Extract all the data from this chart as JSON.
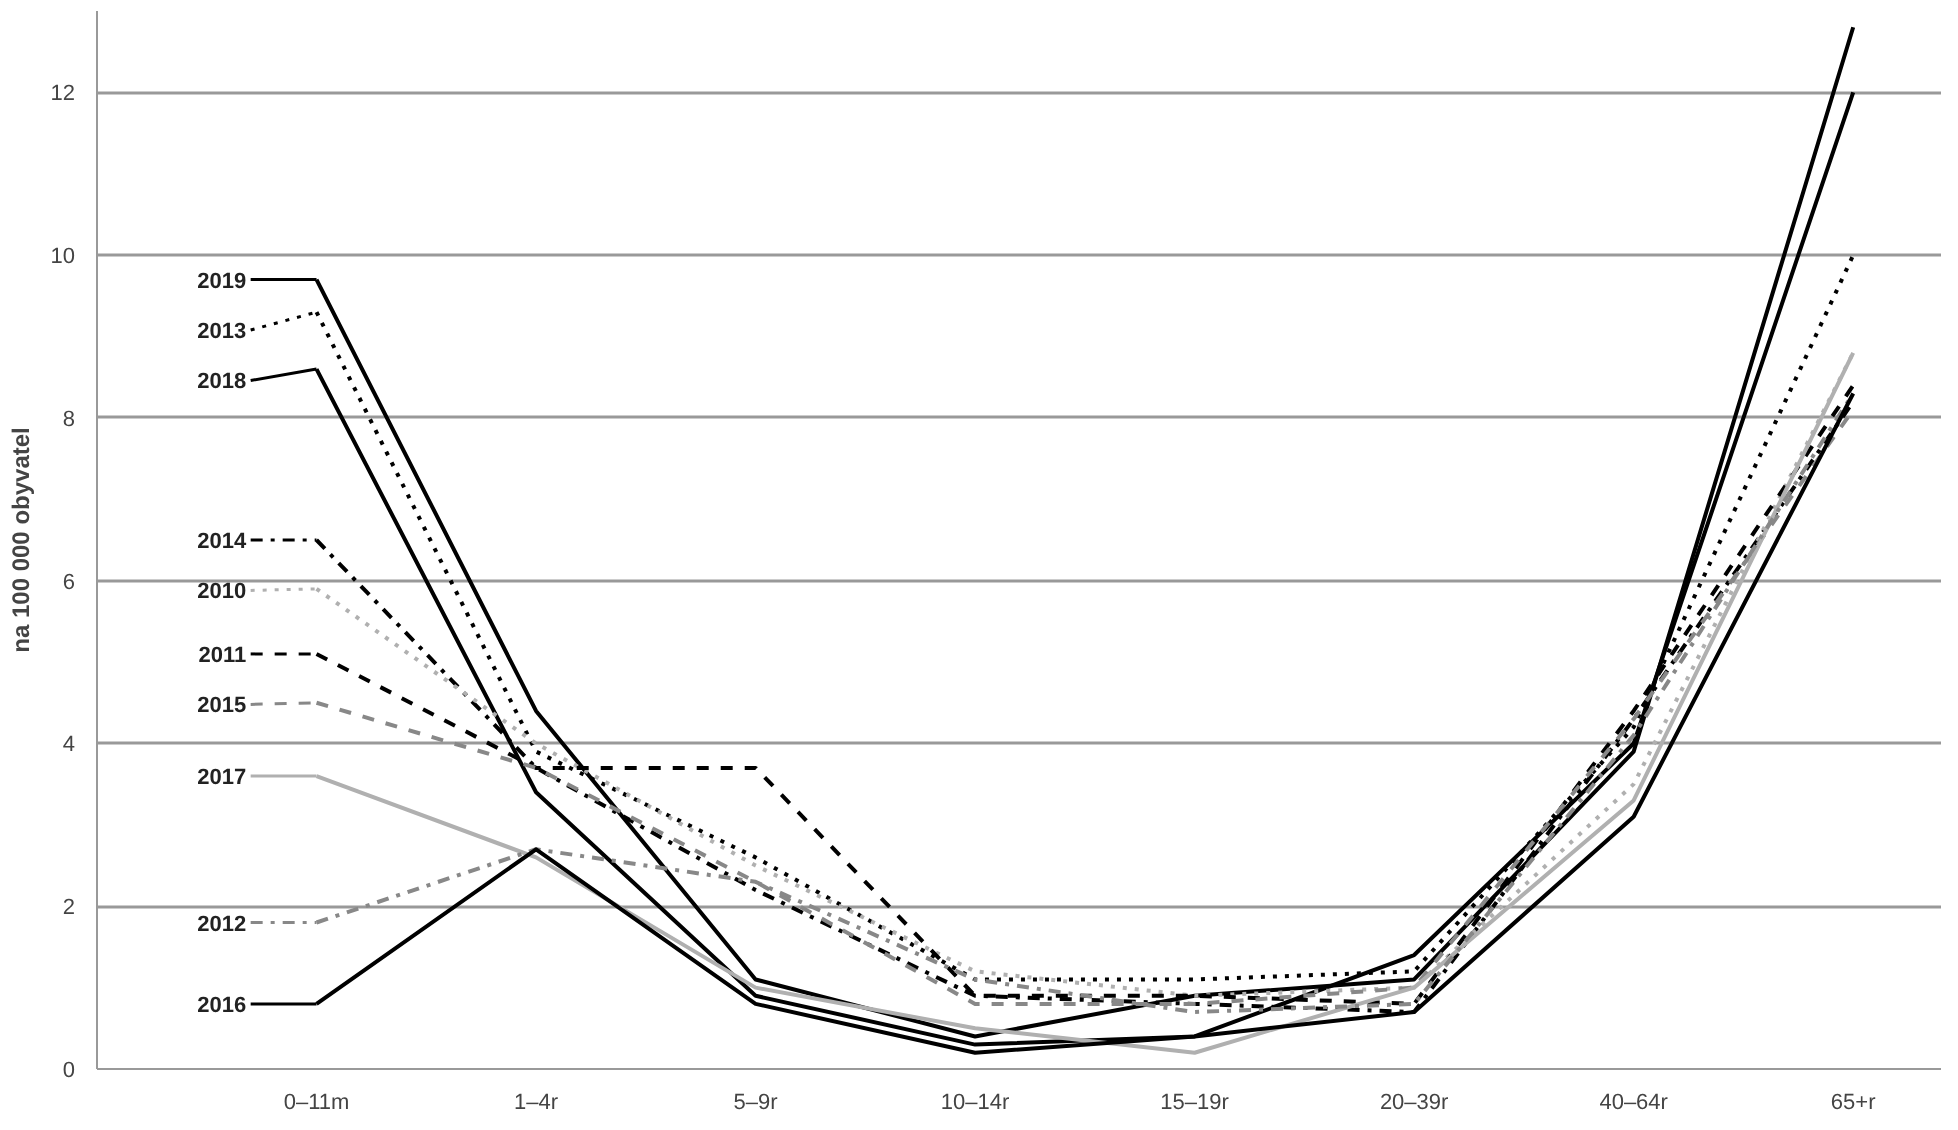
{
  "chart_data": {
    "type": "line",
    "ylabel": "na 100 000 obyvatel",
    "categories": [
      "0–11m",
      "1–4r",
      "5–9r",
      "10–14r",
      "15–19r",
      "20–39r",
      "40–64r",
      "65+r"
    ],
    "ylim": [
      0,
      13
    ],
    "yticks": [
      0,
      2,
      4,
      6,
      8,
      10,
      12
    ],
    "grid": "y",
    "legend": "left",
    "series": [
      {
        "name": "2019",
        "color": "#000000",
        "line_style": "solid",
        "values": [
          9.7,
          4.4,
          1.1,
          0.4,
          0.9,
          1.1,
          3.9,
          12.8
        ]
      },
      {
        "name": "2013",
        "color": "#000000",
        "line_style": "dotted",
        "values": [
          9.3,
          3.9,
          2.6,
          1.1,
          1.1,
          1.2,
          4.2,
          10.0
        ]
      },
      {
        "name": "2018",
        "color": "#000000",
        "line_style": "solid",
        "values": [
          8.6,
          3.4,
          0.9,
          0.3,
          0.4,
          1.4,
          4.0,
          12.0
        ]
      },
      {
        "name": "2014",
        "color": "#000000",
        "line_style": "dashdot",
        "values": [
          6.5,
          3.7,
          2.2,
          0.9,
          0.8,
          0.7,
          4.3,
          8.2
        ]
      },
      {
        "name": "2010",
        "color": "#b0b0b0",
        "line_style": "dotted",
        "values": [
          5.9,
          4.0,
          2.5,
          1.2,
          0.9,
          1.0,
          3.5,
          8.8
        ]
      },
      {
        "name": "2011",
        "color": "#000000",
        "line_style": "dashed",
        "values": [
          5.1,
          3.7,
          3.7,
          0.9,
          0.9,
          0.8,
          4.4,
          8.4
        ]
      },
      {
        "name": "2015",
        "color": "#888888",
        "line_style": "dashed",
        "values": [
          4.5,
          3.7,
          2.3,
          0.8,
          0.8,
          1.0,
          4.3,
          8.1
        ]
      },
      {
        "name": "2017",
        "color": "#b0b0b0",
        "line_style": "solid",
        "values": [
          3.6,
          2.6,
          1.0,
          0.5,
          0.2,
          1.0,
          3.3,
          8.8
        ]
      },
      {
        "name": "2012",
        "color": "#888888",
        "line_style": "dashdot",
        "values": [
          1.8,
          2.7,
          2.3,
          1.1,
          0.7,
          0.8,
          4.1,
          8.3
        ]
      },
      {
        "name": "2016",
        "color": "#000000",
        "line_style": "solid",
        "values": [
          0.8,
          2.7,
          0.8,
          0.2,
          0.4,
          0.7,
          3.1,
          8.3
        ]
      }
    ]
  }
}
